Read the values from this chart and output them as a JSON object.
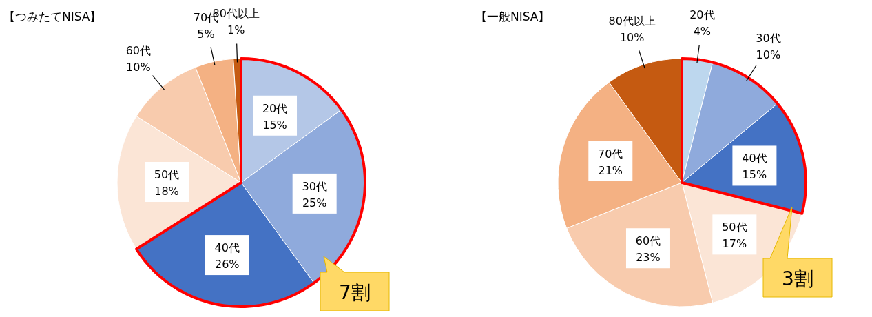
{
  "chart_data": [
    {
      "type": "pie",
      "title": "【つみたてNISA】",
      "categories": [
        "20代",
        "30代",
        "40代",
        "50代",
        "60代",
        "70代",
        "80代以上"
      ],
      "values": [
        15,
        25,
        26,
        18,
        10,
        5,
        1
      ],
      "value_labels": [
        "15%",
        "25%",
        "26%",
        "18%",
        "10%",
        "5%",
        "1%"
      ],
      "colors": [
        "#b4c7e7",
        "#8faadc",
        "#4472c4",
        "#fbe5d6",
        "#f8cbad",
        "#f4b183",
        "#c55a11"
      ],
      "data_labels": true,
      "annotations": [
        "7割"
      ]
    },
    {
      "type": "pie",
      "title": "【一般NISA】",
      "categories": [
        "20代",
        "30代",
        "40代",
        "50代",
        "60代",
        "70代",
        "80代以上"
      ],
      "values": [
        4,
        10,
        15,
        17,
        23,
        21,
        10
      ],
      "value_labels": [
        "4%",
        "10%",
        "15%",
        "17%",
        "23%",
        "21%",
        "10%"
      ],
      "colors": [
        "#bdd7ee",
        "#8faadc",
        "#4472c4",
        "#fbe5d6",
        "#f8cbad",
        "#f4b183",
        "#c55a11"
      ],
      "data_labels": true,
      "annotations": [
        "3割"
      ]
    }
  ]
}
